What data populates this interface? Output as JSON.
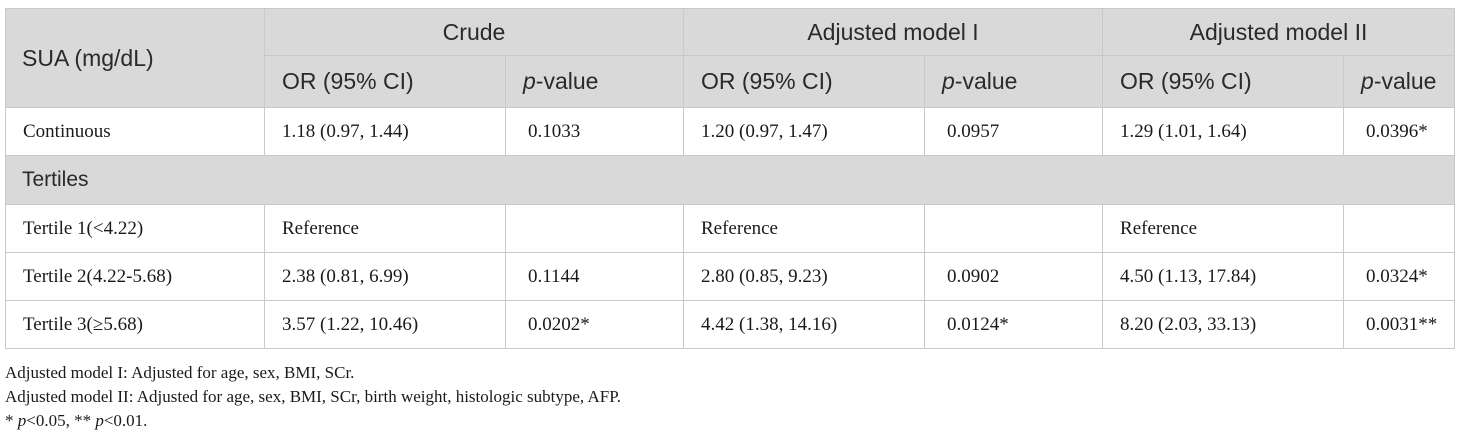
{
  "table": {
    "header": {
      "row_label": "SUA (mg/dL)",
      "groups": [
        "Crude",
        "Adjusted model I",
        "Adjusted model II"
      ],
      "or_label": "OR (95% CI)",
      "p_prefix": "p",
      "p_suffix": "-value"
    },
    "section_label": "Tertiles",
    "rows": [
      {
        "label": "Continuous",
        "cells": [
          "1.18 (0.97, 1.44)",
          "0.1033",
          "1.20 (0.97, 1.47)",
          "0.0957",
          "1.29 (1.01, 1.64)",
          "0.0396*"
        ]
      },
      {
        "label": "Tertile 1(<4.22)",
        "cells": [
          "Reference",
          "",
          "Reference",
          "",
          "Reference",
          ""
        ]
      },
      {
        "label": "Tertile 2(4.22-5.68)",
        "cells": [
          "2.38 (0.81, 6.99)",
          "0.1144",
          "2.80 (0.85, 9.23)",
          "0.0902",
          "4.50 (1.13, 17.84)",
          "0.0324*"
        ]
      },
      {
        "label": "Tertile 3(≥5.68)",
        "cells": [
          "3.57 (1.22, 10.46)",
          "0.0202*",
          "4.42 (1.38, 14.16)",
          "0.0124*",
          "8.20 (2.03, 33.13)",
          "0.0031**"
        ]
      }
    ]
  },
  "footnotes": {
    "model1": "Adjusted model I: Adjusted for age, sex, BMI, SCr.",
    "model2": "Adjusted model II: Adjusted for age, sex, BMI, SCr, birth weight, histologic subtype, AFP.",
    "sig_star1": "* ",
    "sig_p1": "p",
    "sig_text1": "<0.05, ** ",
    "sig_p2": "p",
    "sig_text2": "<0.01."
  }
}
